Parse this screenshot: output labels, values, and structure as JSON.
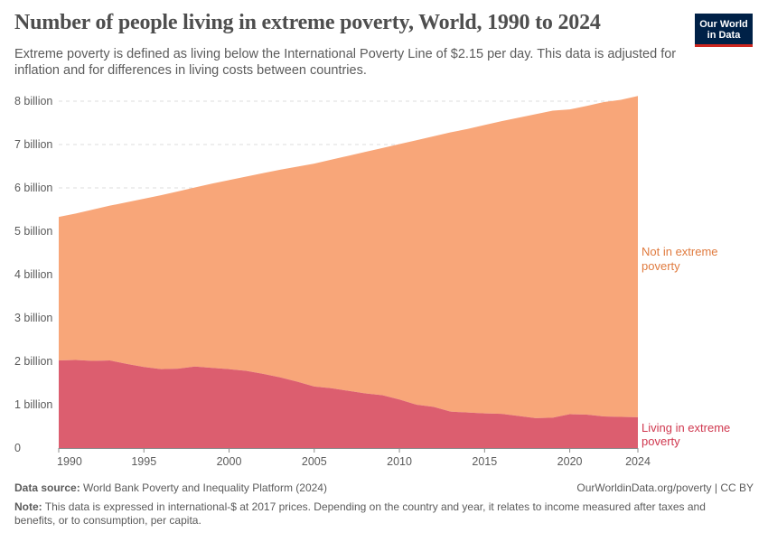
{
  "header": {
    "title": "Number of people living in extreme poverty, World, 1990 to 2024",
    "subtitle": "Extreme poverty is defined as living below the International Poverty Line of $2.15 per day. This data is adjusted for inflation and for differences in living costs between countries.",
    "logo_line1": "Our World",
    "logo_line2": "in Data",
    "logo_color": "#002147"
  },
  "footer": {
    "source_label": "Data source:",
    "source_text": "World Bank Poverty and Inequality Platform (2024)",
    "url": "OurWorldinData.org/poverty | CC BY",
    "note_label": "Note:",
    "note_text": "This data is expressed in international-$ at 2017 prices. Depending on the country and year, it relates to income measured after taxes and benefits, or to consumption, per capita."
  },
  "chart_data": {
    "type": "area",
    "stacked": true,
    "title": "Number of people living in extreme poverty, World, 1990 to 2024",
    "xlim": [
      1990,
      2024
    ],
    "ylim": [
      0,
      8000000000
    ],
    "x_ticks": [
      1990,
      1995,
      2000,
      2005,
      2010,
      2015,
      2020,
      2024
    ],
    "y_ticks": [
      {
        "value": 0,
        "label": "0"
      },
      {
        "value": 1000000000,
        "label": "1 billion"
      },
      {
        "value": 2000000000,
        "label": "2 billion"
      },
      {
        "value": 3000000000,
        "label": "3 billion"
      },
      {
        "value": 4000000000,
        "label": "4 billion"
      },
      {
        "value": 5000000000,
        "label": "5 billion"
      },
      {
        "value": 6000000000,
        "label": "6 billion"
      },
      {
        "value": 7000000000,
        "label": "7 billion"
      },
      {
        "value": 8000000000,
        "label": "8 billion"
      }
    ],
    "grid": "horizontal dashed",
    "x": [
      1990,
      1991,
      1992,
      1993,
      1994,
      1995,
      1996,
      1997,
      1998,
      1999,
      2000,
      2001,
      2002,
      2003,
      2004,
      2005,
      2006,
      2007,
      2008,
      2009,
      2010,
      2011,
      2012,
      2013,
      2014,
      2015,
      2016,
      2017,
      2018,
      2019,
      2020,
      2021,
      2022,
      2023,
      2024
    ],
    "series": [
      {
        "name": "Living in extreme poverty",
        "color": "#dc5e6f",
        "values": [
          2020000000,
          2030000000,
          2010000000,
          2020000000,
          1940000000,
          1870000000,
          1820000000,
          1830000000,
          1880000000,
          1850000000,
          1820000000,
          1780000000,
          1710000000,
          1630000000,
          1530000000,
          1420000000,
          1380000000,
          1320000000,
          1260000000,
          1220000000,
          1120000000,
          1000000000,
          950000000,
          840000000,
          820000000,
          800000000,
          790000000,
          740000000,
          690000000,
          700000000,
          780000000,
          770000000,
          730000000,
          720000000,
          710000000
        ]
      },
      {
        "name": "Not in extreme poverty",
        "color": "#f8a679",
        "values": [
          3310000000,
          3380000000,
          3490000000,
          3570000000,
          3730000000,
          3880000000,
          4010000000,
          4090000000,
          4130000000,
          4250000000,
          4360000000,
          4480000000,
          4630000000,
          4790000000,
          4960000000,
          5140000000,
          5270000000,
          5420000000,
          5570000000,
          5700000000,
          5890000000,
          6100000000,
          6240000000,
          6440000000,
          6540000000,
          6650000000,
          6750000000,
          6880000000,
          7010000000,
          7080000000,
          7030000000,
          7120000000,
          7250000000,
          7310000000,
          7410000000
        ]
      }
    ],
    "series_labels": {
      "top_line1": "Not in extreme",
      "top_line2": "poverty",
      "bottom_line1": "Living in extreme",
      "bottom_line2": "poverty"
    }
  }
}
